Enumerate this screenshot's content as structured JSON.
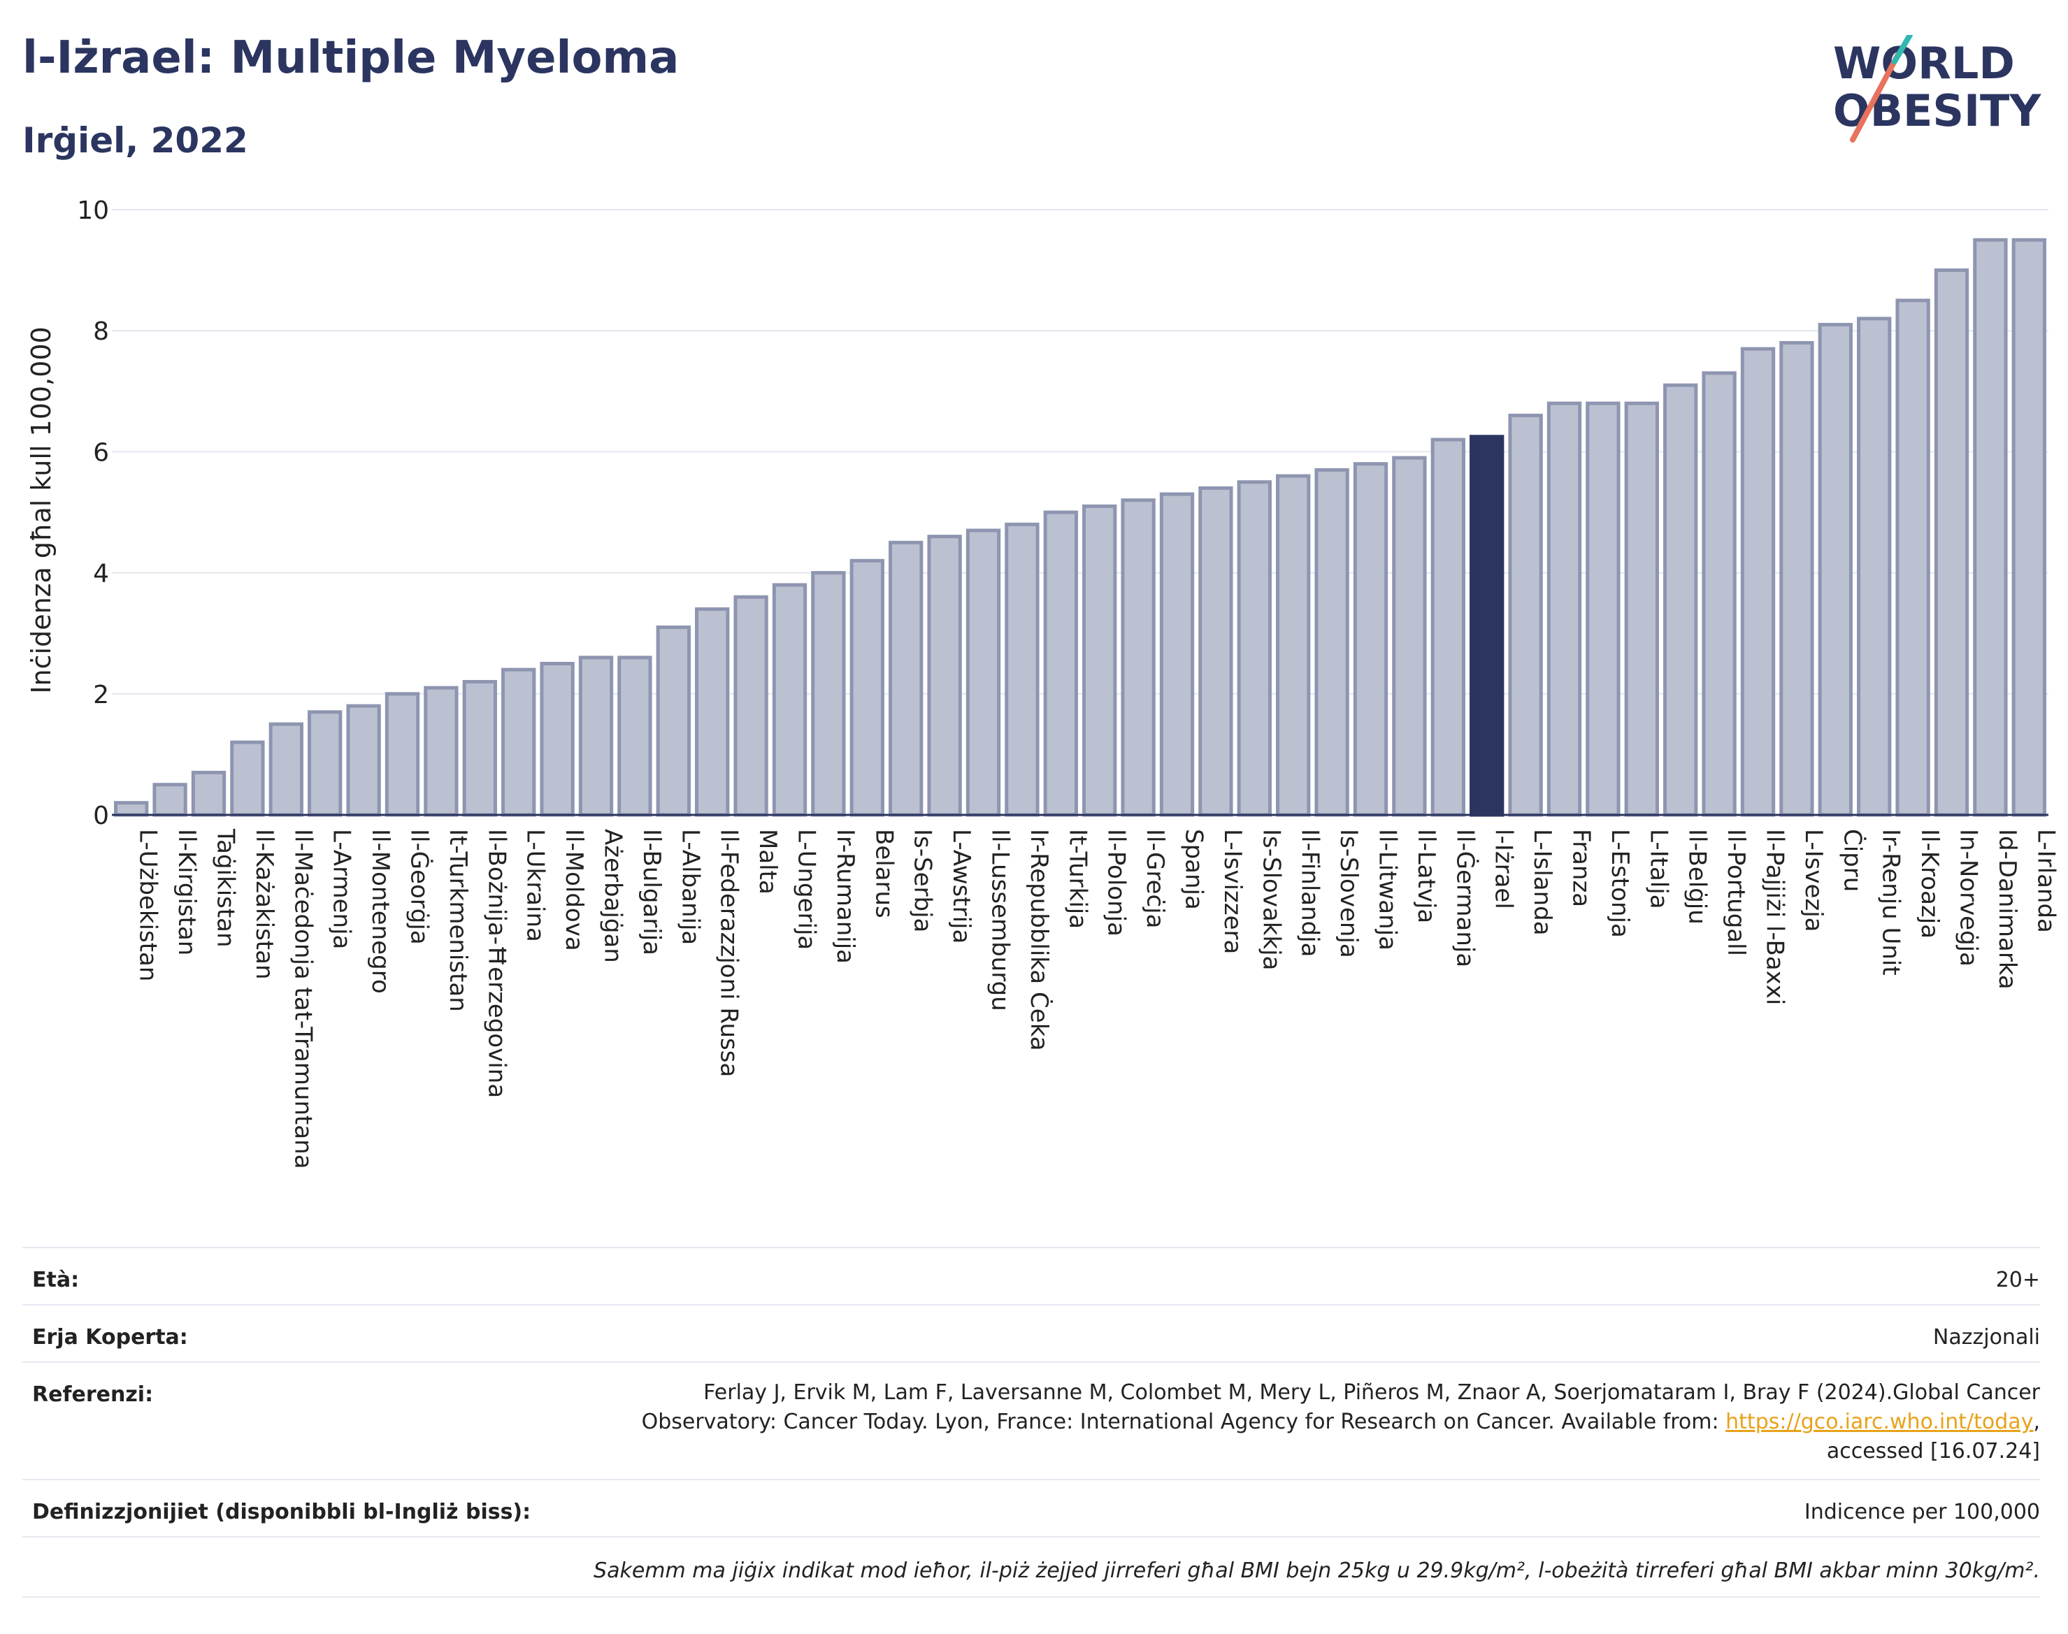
{
  "header": {
    "title": "l-Iżrael: Multiple Myeloma",
    "subtitle": "Irġiel, 2022"
  },
  "logo": {
    "line1": "WORLD",
    "line2": "OBESITY"
  },
  "colors": {
    "bar": "#bcc1d1",
    "bar_stroke": "#8e95b0",
    "highlight": "#2b3560",
    "text": "#2b3560"
  },
  "chart_data": {
    "type": "bar",
    "ylabel": "Inċidenza għal kull 100,000",
    "ylim": [
      0,
      10
    ],
    "yticks": [
      0,
      2,
      4,
      6,
      8,
      10
    ],
    "grid": true,
    "highlight": "l-Iżrael",
    "categories": [
      "L-Użbekistan",
      "Il-Kirgistan",
      "Taġikistan",
      "Il-Każakistan",
      "Il-Maċedonja tat-Tramuntana",
      "L-Armenja",
      "Il-Montenegro",
      "Il-Ġeorġja",
      "It-Turkmenistan",
      "Il-Bożnija-Ħerzegovina",
      "L-Ukraina",
      "Il-Moldova",
      "Ażerbajġan",
      "Il-Bulgarija",
      "L-Albanija",
      "Il-Federazzjoni Russa",
      "Malta",
      "L-Ungerija",
      "Ir-Rumanija",
      "Belarus",
      "Is-Serbja",
      "L-Awstrija",
      "Il-Lussemburgu",
      "Ir-Repubblika Ċeka",
      "It-Turkija",
      "Il-Polonja",
      "Il-Greċja",
      "Spanja",
      "L-Isvizzera",
      "Is-Slovakkja",
      "Il-Finlandja",
      "Is-Slovenja",
      "Il-Litwanja",
      "Il-Latvja",
      "Il-Ġermanja",
      "l-Iżrael",
      "L-Islanda",
      "Franza",
      "L-Estonja",
      "L-Italja",
      "Il-Belġju",
      "Il-Portugall",
      "Il-Pajjiżi l-Baxxi",
      "L-Isvezja",
      "Ċipru",
      "Ir-Renju Unit",
      "Il-Kroazja",
      "In-Norveġja",
      "Id-Danimarka",
      "L-Irlanda"
    ],
    "values": [
      0.2,
      0.5,
      0.7,
      1.2,
      1.5,
      1.7,
      1.8,
      2.0,
      2.1,
      2.2,
      2.4,
      2.5,
      2.6,
      2.6,
      3.1,
      3.4,
      3.6,
      3.8,
      4.0,
      4.2,
      4.5,
      4.6,
      4.7,
      4.8,
      5.0,
      5.1,
      5.2,
      5.3,
      5.4,
      5.5,
      5.6,
      5.7,
      5.8,
      5.9,
      6.2,
      6.25,
      6.6,
      6.8,
      6.8,
      6.8,
      7.1,
      7.3,
      7.7,
      7.8,
      8.1,
      8.2,
      8.5,
      9.0,
      9.5,
      9.5
    ]
  },
  "info": {
    "age_label": "Età:",
    "age_value": "20+",
    "coverage_label": "Erja Koperta:",
    "coverage_value": "Nazzjonali",
    "reference_label": "Referenzi:",
    "reference_line1": "Ferlay J, Ervik M, Lam F, Laversanne M, Colombet M, Mery L, Piñeros M, Znaor A, Soerjomataram I, Bray F (2024).Global Cancer",
    "reference_line2": "Observatory: Cancer Today. Lyon, France: International Agency for Research on Cancer. Available from: ",
    "reference_link": "https://gco.iarc.who.int/today",
    "reference_line2_end": ",",
    "reference_line3": "accessed [16.07.24]",
    "definitions_label": "Definizzjonijiet (disponibbli bl-Ingliż biss):",
    "definitions_value": "Indicence per 100,000",
    "note": "Sakemm ma jiġix indikat mod ieħor, il-piż żejjed jirreferi għal BMI bejn 25kg u 29.9kg/m², l-obeżità tirreferi għal BMI akbar minn 30kg/m²."
  }
}
